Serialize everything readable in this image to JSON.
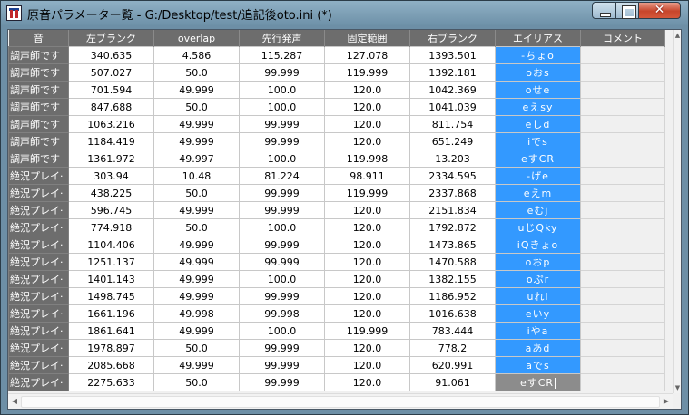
{
  "window": {
    "title": "原音パラメーター覧 - G:/Desktop/test/追記後oto.ini (*)",
    "close_symbol": "✕",
    "minimize_symbol": "",
    "maximize_symbol": ""
  },
  "table": {
    "columns": [
      "音",
      "左ブランク",
      "overlap",
      "先行発声",
      "固定範囲",
      "右ブランク",
      "エイリアス",
      "コメント"
    ],
    "rows": [
      {
        "name": "調声師です",
        "left": "340.635",
        "overlap": "4.586",
        "pre": "115.287",
        "fixed": "127.078",
        "right": "1393.501",
        "alias": "-ちょo",
        "comment": ""
      },
      {
        "name": "調声師です",
        "left": "507.027",
        "overlap": "50.0",
        "pre": "99.999",
        "fixed": "119.999",
        "right": "1392.181",
        "alias": "oおs",
        "comment": ""
      },
      {
        "name": "調声師です",
        "left": "701.594",
        "overlap": "49.999",
        "pre": "100.0",
        "fixed": "120.0",
        "right": "1042.369",
        "alias": "oせe",
        "comment": ""
      },
      {
        "name": "調声師です",
        "left": "847.688",
        "overlap": "50.0",
        "pre": "100.0",
        "fixed": "120.0",
        "right": "1041.039",
        "alias": "eえsy",
        "comment": ""
      },
      {
        "name": "調声師です",
        "left": "1063.216",
        "overlap": "49.999",
        "pre": "99.999",
        "fixed": "120.0",
        "right": "811.754",
        "alias": "eしd",
        "comment": ""
      },
      {
        "name": "調声師です",
        "left": "1184.419",
        "overlap": "49.999",
        "pre": "99.999",
        "fixed": "120.0",
        "right": "651.249",
        "alias": "iでs",
        "comment": ""
      },
      {
        "name": "調声師です",
        "left": "1361.972",
        "overlap": "49.997",
        "pre": "100.0",
        "fixed": "119.998",
        "right": "13.203",
        "alias": "eすCR",
        "comment": ""
      },
      {
        "name": "絶況プレイ·",
        "left": "303.94",
        "overlap": "10.48",
        "pre": "81.224",
        "fixed": "98.911",
        "right": "2334.595",
        "alias": "-げe",
        "comment": ""
      },
      {
        "name": "絶況プレイ·",
        "left": "438.225",
        "overlap": "50.0",
        "pre": "99.999",
        "fixed": "119.999",
        "right": "2337.868",
        "alias": "eえm",
        "comment": ""
      },
      {
        "name": "絶況プレイ·",
        "left": "596.745",
        "overlap": "49.999",
        "pre": "99.999",
        "fixed": "120.0",
        "right": "2151.834",
        "alias": "eむj",
        "comment": ""
      },
      {
        "name": "絶況プレイ·",
        "left": "774.918",
        "overlap": "50.0",
        "pre": "100.0",
        "fixed": "120.0",
        "right": "1792.872",
        "alias": "uじQky",
        "comment": ""
      },
      {
        "name": "絶況プレイ·",
        "left": "1104.406",
        "overlap": "49.999",
        "pre": "99.999",
        "fixed": "120.0",
        "right": "1473.865",
        "alias": "iQきょo",
        "comment": ""
      },
      {
        "name": "絶況プレイ·",
        "left": "1251.137",
        "overlap": "49.999",
        "pre": "99.999",
        "fixed": "120.0",
        "right": "1470.588",
        "alias": "oおp",
        "comment": ""
      },
      {
        "name": "絶況プレイ·",
        "left": "1401.143",
        "overlap": "49.999",
        "pre": "100.0",
        "fixed": "120.0",
        "right": "1382.155",
        "alias": "oぷr",
        "comment": ""
      },
      {
        "name": "絶況プレイ·",
        "left": "1498.745",
        "overlap": "49.999",
        "pre": "99.999",
        "fixed": "120.0",
        "right": "1186.952",
        "alias": "uれi",
        "comment": ""
      },
      {
        "name": "絶況プレイ·",
        "left": "1661.196",
        "overlap": "49.998",
        "pre": "99.998",
        "fixed": "120.0",
        "right": "1016.638",
        "alias": "eいy",
        "comment": ""
      },
      {
        "name": "絶況プレイ·",
        "left": "1861.641",
        "overlap": "49.999",
        "pre": "100.0",
        "fixed": "119.999",
        "right": "783.444",
        "alias": "iやa",
        "comment": ""
      },
      {
        "name": "絶況プレイ·",
        "left": "1978.897",
        "overlap": "50.0",
        "pre": "99.999",
        "fixed": "120.0",
        "right": "778.2",
        "alias": "aあd",
        "comment": ""
      },
      {
        "name": "絶況プレイ·",
        "left": "2085.668",
        "overlap": "49.999",
        "pre": "99.999",
        "fixed": "120.0",
        "right": "620.991",
        "alias": "aでs",
        "comment": ""
      },
      {
        "name": "絶況プレイ·",
        "left": "2275.633",
        "overlap": "50.0",
        "pre": "99.999",
        "fixed": "120.0",
        "right": "91.061",
        "alias": "eすCR",
        "comment": ""
      }
    ]
  },
  "colors": {
    "alias_selected": "#3399ff",
    "alias_editing": "#8c8c8c",
    "header_bg": "#6d6d6d"
  },
  "scrollbars": {
    "up_arrow": "▲",
    "down_arrow": "▼",
    "left_arrow": "◀",
    "right_arrow": "▶"
  }
}
